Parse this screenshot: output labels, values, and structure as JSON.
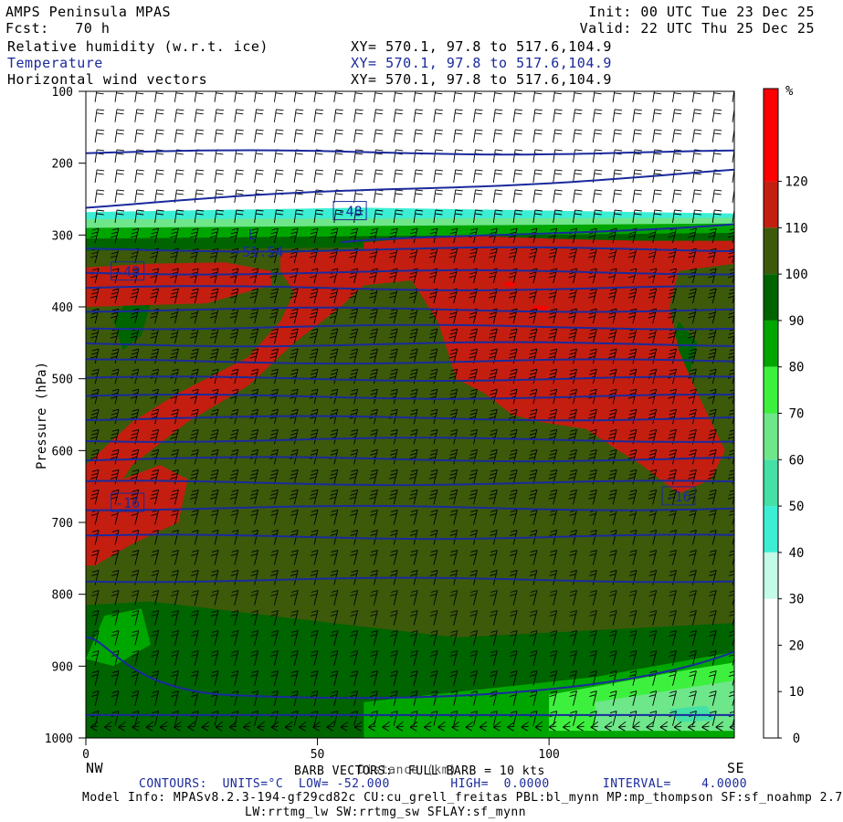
{
  "header": {
    "title": "AMPS Peninsula MPAS",
    "fcst": "Fcst:   70 h",
    "init": "Init: 00 UTC Tue 23 Dec 25",
    "valid": "Valid: 22 UTC Thu 25 Dec 25",
    "fields": [
      {
        "name": "Relative humidity (w.r.t. ice)",
        "xy": "XY= 570.1, 97.8 to 517.6,104.9",
        "color": "#000000"
      },
      {
        "name": "Temperature",
        "xy": "XY= 570.1, 97.8 to 517.6,104.9",
        "color": "#1a2a9c"
      },
      {
        "name": "Horizontal wind vectors",
        "xy": "XY= 570.1, 97.8 to 517.6,104.9",
        "color": "#000000"
      }
    ]
  },
  "chart_data": {
    "type": "heatmap",
    "ylabel": "Pressure (hPa)",
    "xlabel": "Distance (km)",
    "x_ticks": [
      0,
      50,
      100
    ],
    "y_ticks": [
      100,
      200,
      300,
      400,
      500,
      600,
      700,
      800,
      900,
      1000
    ],
    "xlim": [
      0,
      140
    ],
    "ylim": [
      1000,
      100
    ],
    "left_label": "NW",
    "right_label": "SE",
    "colorbar": {
      "unit": "%",
      "labels": [
        "120",
        "110",
        "100",
        "90",
        "80",
        "70",
        "60",
        "50",
        "40",
        "30",
        "20",
        "10",
        "0"
      ],
      "bins": [
        {
          "range": [
            120,
            130
          ],
          "color": "#ff0000"
        },
        {
          "range": [
            110,
            120
          ],
          "color": "#c41e10"
        },
        {
          "range": [
            100,
            110
          ],
          "color": "#3c5a0a"
        },
        {
          "range": [
            90,
            100
          ],
          "color": "#006400"
        },
        {
          "range": [
            80,
            90
          ],
          "color": "#00a600"
        },
        {
          "range": [
            70,
            80
          ],
          "color": "#3ef03e"
        },
        {
          "range": [
            60,
            70
          ],
          "color": "#6ee68a"
        },
        {
          "range": [
            50,
            60
          ],
          "color": "#44e0a6"
        },
        {
          "range": [
            40,
            50
          ],
          "color": "#3cefd4"
        },
        {
          "range": [
            30,
            40
          ],
          "color": "#c4fae8"
        },
        {
          "range": [
            20,
            30
          ],
          "color": "#ffffff"
        },
        {
          "range": [
            10,
            20
          ],
          "color": "#ffffff"
        },
        {
          "range": [
            0,
            10
          ],
          "color": "#ffffff"
        }
      ]
    },
    "temperature_labels": [
      "-48",
      "-48",
      "-16",
      "-16"
    ],
    "min_label": "L",
    "min_value": "-51.54",
    "barb_legend": "BARB VECTORS:  FULL BARB = 10 kts",
    "contour_info": "CONTOURS:  UNITS=°C  LOW= -52.000        HIGH=  0.0000       INTERVAL=    4.0000",
    "model_info": "Model Info: MPASv8.2.3-194-gf29cd82c CU:cu_grell_freitas PBL:bl_mynn MP:mp_thompson SF:sf_noahmp 2.7",
    "model_info2": "LW:rrtmg_lw SW:rrtmg_sw SFLAY:sf_mynn"
  }
}
